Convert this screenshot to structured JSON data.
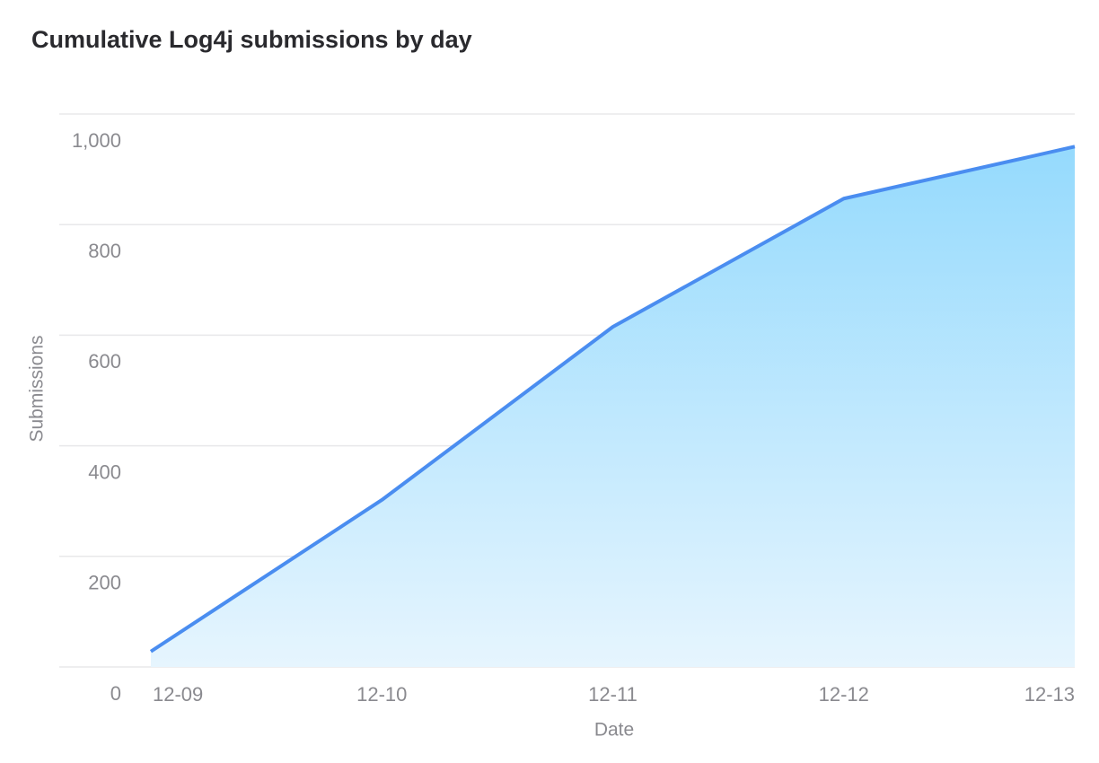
{
  "chart_data": {
    "type": "area",
    "title": "Cumulative Log4j submissions by day",
    "categories": [
      "12-09",
      "12-10",
      "12-11",
      "12-12",
      "12-13"
    ],
    "values": [
      28,
      302,
      615,
      847,
      941
    ],
    "color": "#4a8df0",
    "ylim": [
      0,
      1000
    ],
    "yticks": [
      0,
      200,
      400,
      600,
      800,
      {
        "value": 1000,
        "label": "1,000"
      }
    ],
    "grid": true,
    "x_label": "Date",
    "y_label": "Submissions"
  }
}
